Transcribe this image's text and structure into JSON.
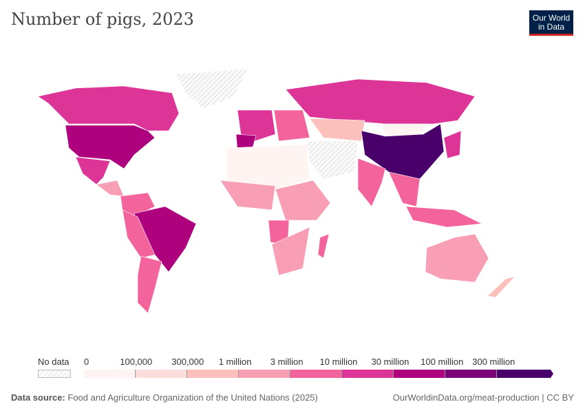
{
  "title": "Number of pigs, 2023",
  "logo": "Our World in Data",
  "legend": {
    "no_data": "No data",
    "labels": [
      "0",
      "100,000",
      "300,000",
      "1 million",
      "3 million",
      "10 million",
      "30 million",
      "100 million",
      "300 million"
    ],
    "colors": [
      "#fef4f1",
      "#fddcdc",
      "#fbc0bb",
      "#f99fb5",
      "#f3649c",
      "#dc3597",
      "#ad017e",
      "#7a0177",
      "#49006a"
    ]
  },
  "map": {
    "regions": [
      {
        "name": "Canada",
        "bin": 5
      },
      {
        "name": "United States",
        "bin": 6
      },
      {
        "name": "Mexico",
        "bin": 5
      },
      {
        "name": "Greenland",
        "bin": -1
      },
      {
        "name": "Central America",
        "bin": 3
      },
      {
        "name": "Colombia/Venezuela",
        "bin": 4
      },
      {
        "name": "Brazil",
        "bin": 6
      },
      {
        "name": "Peru/Bolivia",
        "bin": 4
      },
      {
        "name": "Argentina/Chile",
        "bin": 4
      },
      {
        "name": "Western Europe",
        "bin": 5
      },
      {
        "name": "Spain",
        "bin": 6
      },
      {
        "name": "Eastern Europe",
        "bin": 4
      },
      {
        "name": "Russia",
        "bin": 5
      },
      {
        "name": "Kazakhstan",
        "bin": 2
      },
      {
        "name": "Mongolia",
        "bin": 0
      },
      {
        "name": "China",
        "bin": 8
      },
      {
        "name": "India",
        "bin": 4
      },
      {
        "name": "Southeast Asia",
        "bin": 4
      },
      {
        "name": "Japan/Korea",
        "bin": 5
      },
      {
        "name": "Middle East",
        "bin": -1
      },
      {
        "name": "North Africa",
        "bin": 0
      },
      {
        "name": "West Africa",
        "bin": 3
      },
      {
        "name": "Central/East Africa",
        "bin": 3
      },
      {
        "name": "Angola",
        "bin": 4
      },
      {
        "name": "Southern Africa",
        "bin": 3
      },
      {
        "name": "Madagascar",
        "bin": 4
      },
      {
        "name": "Australia",
        "bin": 3
      },
      {
        "name": "New Zealand",
        "bin": 2
      },
      {
        "name": "Indonesia/Philippines",
        "bin": 4
      }
    ]
  },
  "footer": {
    "source_label": "Data source:",
    "source": "Food and Agriculture Organization of the United Nations (2025)",
    "url": "OurWorldinData.org/meat-production | CC BY"
  }
}
